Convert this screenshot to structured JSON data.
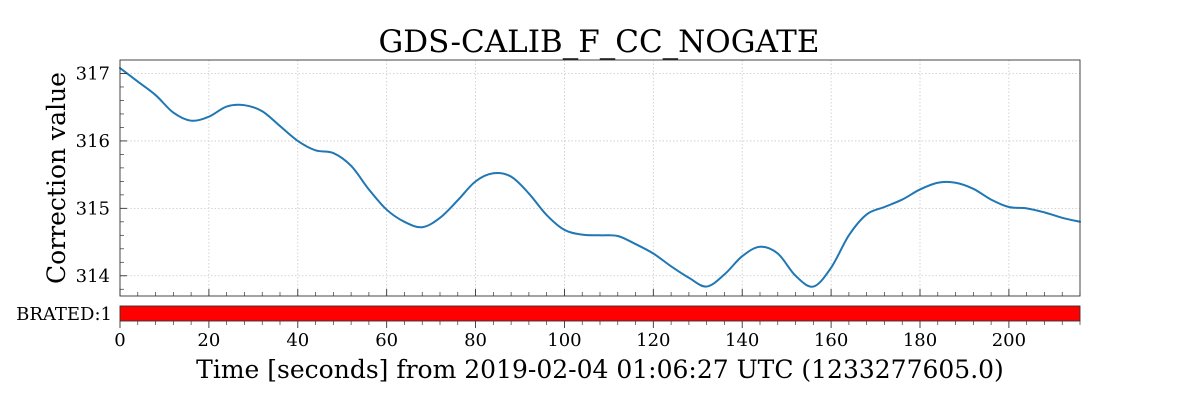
{
  "chart_data": {
    "type": "line",
    "title": "GDS-CALIB_F_CC_NOGATE",
    "ylabel": "Correction value",
    "xlabel": "Time [seconds] from 2019-02-04 01:06:27 UTC (1233277605.0)",
    "xlim": [
      0,
      216
    ],
    "ylim": [
      313.7,
      317.2
    ],
    "grid": true,
    "x_ticks": [
      0,
      20,
      40,
      60,
      80,
      100,
      120,
      140,
      160,
      180,
      200
    ],
    "x_tick_labels": [
      "0",
      "20",
      "40",
      "60",
      "80",
      "100",
      "120",
      "140",
      "160",
      "180",
      "200"
    ],
    "y_ticks": [
      314,
      315,
      316,
      317
    ],
    "y_tick_labels": [
      "314",
      "315",
      "316",
      "317"
    ],
    "series": [
      {
        "color": "#1f77b4",
        "x": [
          0,
          4,
          8,
          12,
          16,
          20,
          24,
          28,
          32,
          36,
          40,
          44,
          48,
          52,
          56,
          60,
          64,
          68,
          72,
          76,
          80,
          84,
          88,
          92,
          96,
          100,
          104,
          108,
          112,
          116,
          120,
          124,
          128,
          132,
          136,
          140,
          144,
          148,
          152,
          156,
          160,
          164,
          168,
          172,
          176,
          180,
          184,
          188,
          192,
          196,
          200,
          204,
          208,
          212,
          216
        ],
        "y": [
          317.08,
          316.88,
          316.68,
          316.42,
          316.3,
          316.36,
          316.51,
          316.53,
          316.44,
          316.22,
          316.0,
          315.86,
          315.82,
          315.63,
          315.28,
          314.98,
          314.8,
          314.72,
          314.86,
          315.12,
          315.4,
          315.52,
          315.47,
          315.22,
          314.9,
          314.68,
          314.61,
          314.6,
          314.59,
          314.47,
          314.33,
          314.14,
          313.97,
          313.84,
          314.02,
          314.29,
          314.43,
          314.33,
          314.0,
          313.84,
          314.12,
          314.6,
          314.91,
          315.02,
          315.13,
          315.28,
          315.38,
          315.38,
          315.29,
          315.13,
          315.02,
          315.0,
          314.94,
          314.86,
          314.8
        ]
      }
    ],
    "state_bar": {
      "label": "BRATED:1",
      "color": "#ff0000",
      "range": [
        0,
        216
      ]
    }
  }
}
